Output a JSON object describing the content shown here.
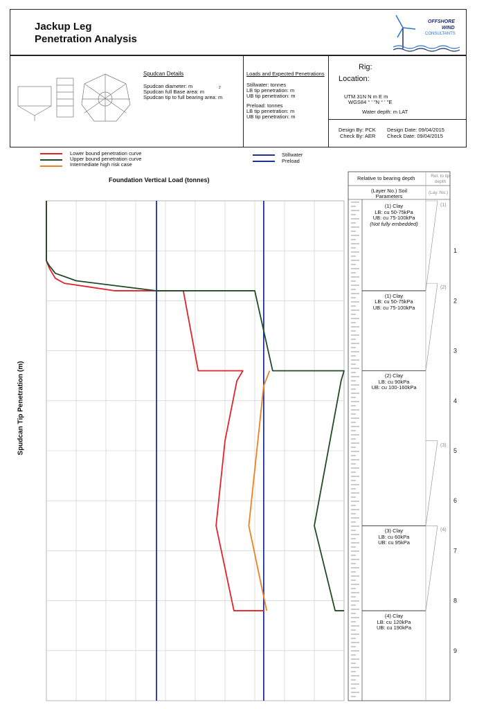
{
  "header": {
    "title_line1": "Jackup Leg",
    "title_line2": "Penetration Analysis",
    "logo_line1": "OFFSHORE",
    "logo_line2": "WIND",
    "logo_line3": "CONSULTANTS"
  },
  "spudcan": {
    "heading": "Spudcan Details",
    "diameter": "Spudcan diameter:          m",
    "base_area_label": "Spudcan full Base area:          m",
    "base_area_sup": "2",
    "tip_ratio": "Spudcan tip to full bearing area:      m"
  },
  "loads": {
    "heading": "Loads and Expected Penetrations",
    "stillwater": "Stillwater:          tonnes",
    "stillwater_lb": "LB tip penetration:        m",
    "stillwater_ub": "UB tip penetration:        m",
    "preload": "Preload:              tonnes",
    "preload_lb": "LB tip penetration:        m",
    "preload_ub": "UB tip penetration:        m"
  },
  "location": {
    "rig": "Rig:",
    "location": "Location:",
    "utm": "UTM 31N   N                 m  E              m",
    "wgs": "WGS84      °   '        \"N       °   '       \"E",
    "water_depth": "Water depth:       m LAT",
    "design_by": "Design By: PCK",
    "check_by": "Check By: AER",
    "design_date": "Design Date: 09/04/2015",
    "check_date": "Check Date: 09/04/2015"
  },
  "legend": {
    "lower": "Lower bound penetration curve",
    "upper": "Upper bound penetration curve",
    "intermediate": "Intermediate high risk case",
    "stillwater": "Stillwater",
    "preload": "Preload"
  },
  "colors": {
    "lower": "#e0222b",
    "upper": "#1d4a25",
    "intermediate": "#f07f1e",
    "stillwater_line": "#1f2f9c",
    "preload_line": "#1f2f9c",
    "grid": "#c8c8c8"
  },
  "soil_panel": {
    "col_header": "Relative to bearing depth",
    "col_header2": "Rel. to tip depth",
    "params_header": "(Layer No.) Soil Parameters",
    "lay_header": "(Lay. No.)",
    "layers": [
      {
        "name": "(1) Clay",
        "lb": "LB: cu 50-75kPa",
        "ub": "UB: cu 75-100kPa",
        "note": "(Not fully embedded)",
        "tip_no": "(1)"
      },
      {
        "name": "(1) Clay",
        "lb": "LB: cu 50-75kPa",
        "ub": "UB: cu 75-100kPa",
        "note": "",
        "tip_no": "(2)"
      },
      {
        "name": "(2) Clay",
        "lb": "LB: cu 90kPa",
        "ub": "UB: cu 100-160kPa",
        "note": "",
        "tip_no": "(3)"
      },
      {
        "name": "(3) Clay",
        "lb": "LB: cu 60kPa",
        "ub": "UB: cu 95kPa",
        "note": "",
        "tip_no": "(4)"
      },
      {
        "name": "(4) Clay",
        "lb": "LB: cu 120kPa",
        "ub": "UB: cu 190kPa",
        "note": "",
        "tip_no": ""
      }
    ]
  },
  "chart_data": {
    "type": "line",
    "title": "Foundation Vertical Load (tonnes)",
    "ylabel": "Spudcan Tip Penetration (m)",
    "xlabel": "",
    "y_ticks": [
      "1",
      "2",
      "3",
      "4",
      "5",
      "6",
      "7",
      "8",
      "9"
    ],
    "ylim": [
      0,
      10.0
    ],
    "xlim": [
      0,
      100
    ],
    "x_gridlines": 10,
    "y_inverted": true,
    "grid": true,
    "legend_position": "top",
    "series": [
      {
        "name": "Lower bound penetration curve",
        "x": [
          0,
          0,
          1,
          3,
          6,
          23,
          37,
          46,
          51,
          66,
          64,
          60,
          57,
          63,
          73
        ],
        "y": [
          0,
          1.2,
          1.35,
          1.55,
          1.65,
          1.8,
          1.8,
          1.8,
          3.4,
          3.4,
          3.6,
          4.8,
          6.5,
          8.2,
          8.2
        ]
      },
      {
        "name": "Upper bound penetration curve",
        "x": [
          0,
          0,
          1,
          3,
          10,
          37,
          70,
          76,
          100,
          99,
          90,
          97,
          100
        ],
        "y": [
          0,
          1.2,
          1.3,
          1.45,
          1.6,
          1.8,
          1.8,
          3.4,
          3.4,
          3.6,
          6.5,
          8.2,
          8.2
        ]
      },
      {
        "name": "Intermediate high risk case",
        "x": [
          75,
          73,
          68,
          74
        ],
        "y": [
          3.4,
          3.7,
          6.5,
          8.2
        ]
      }
    ],
    "vlines": [
      {
        "name": "Stillwater",
        "x": 37
      },
      {
        "name": "Preload",
        "x": 73
      }
    ],
    "layer_boundaries": [
      1.8,
      3.4,
      6.5,
      8.2
    ]
  }
}
